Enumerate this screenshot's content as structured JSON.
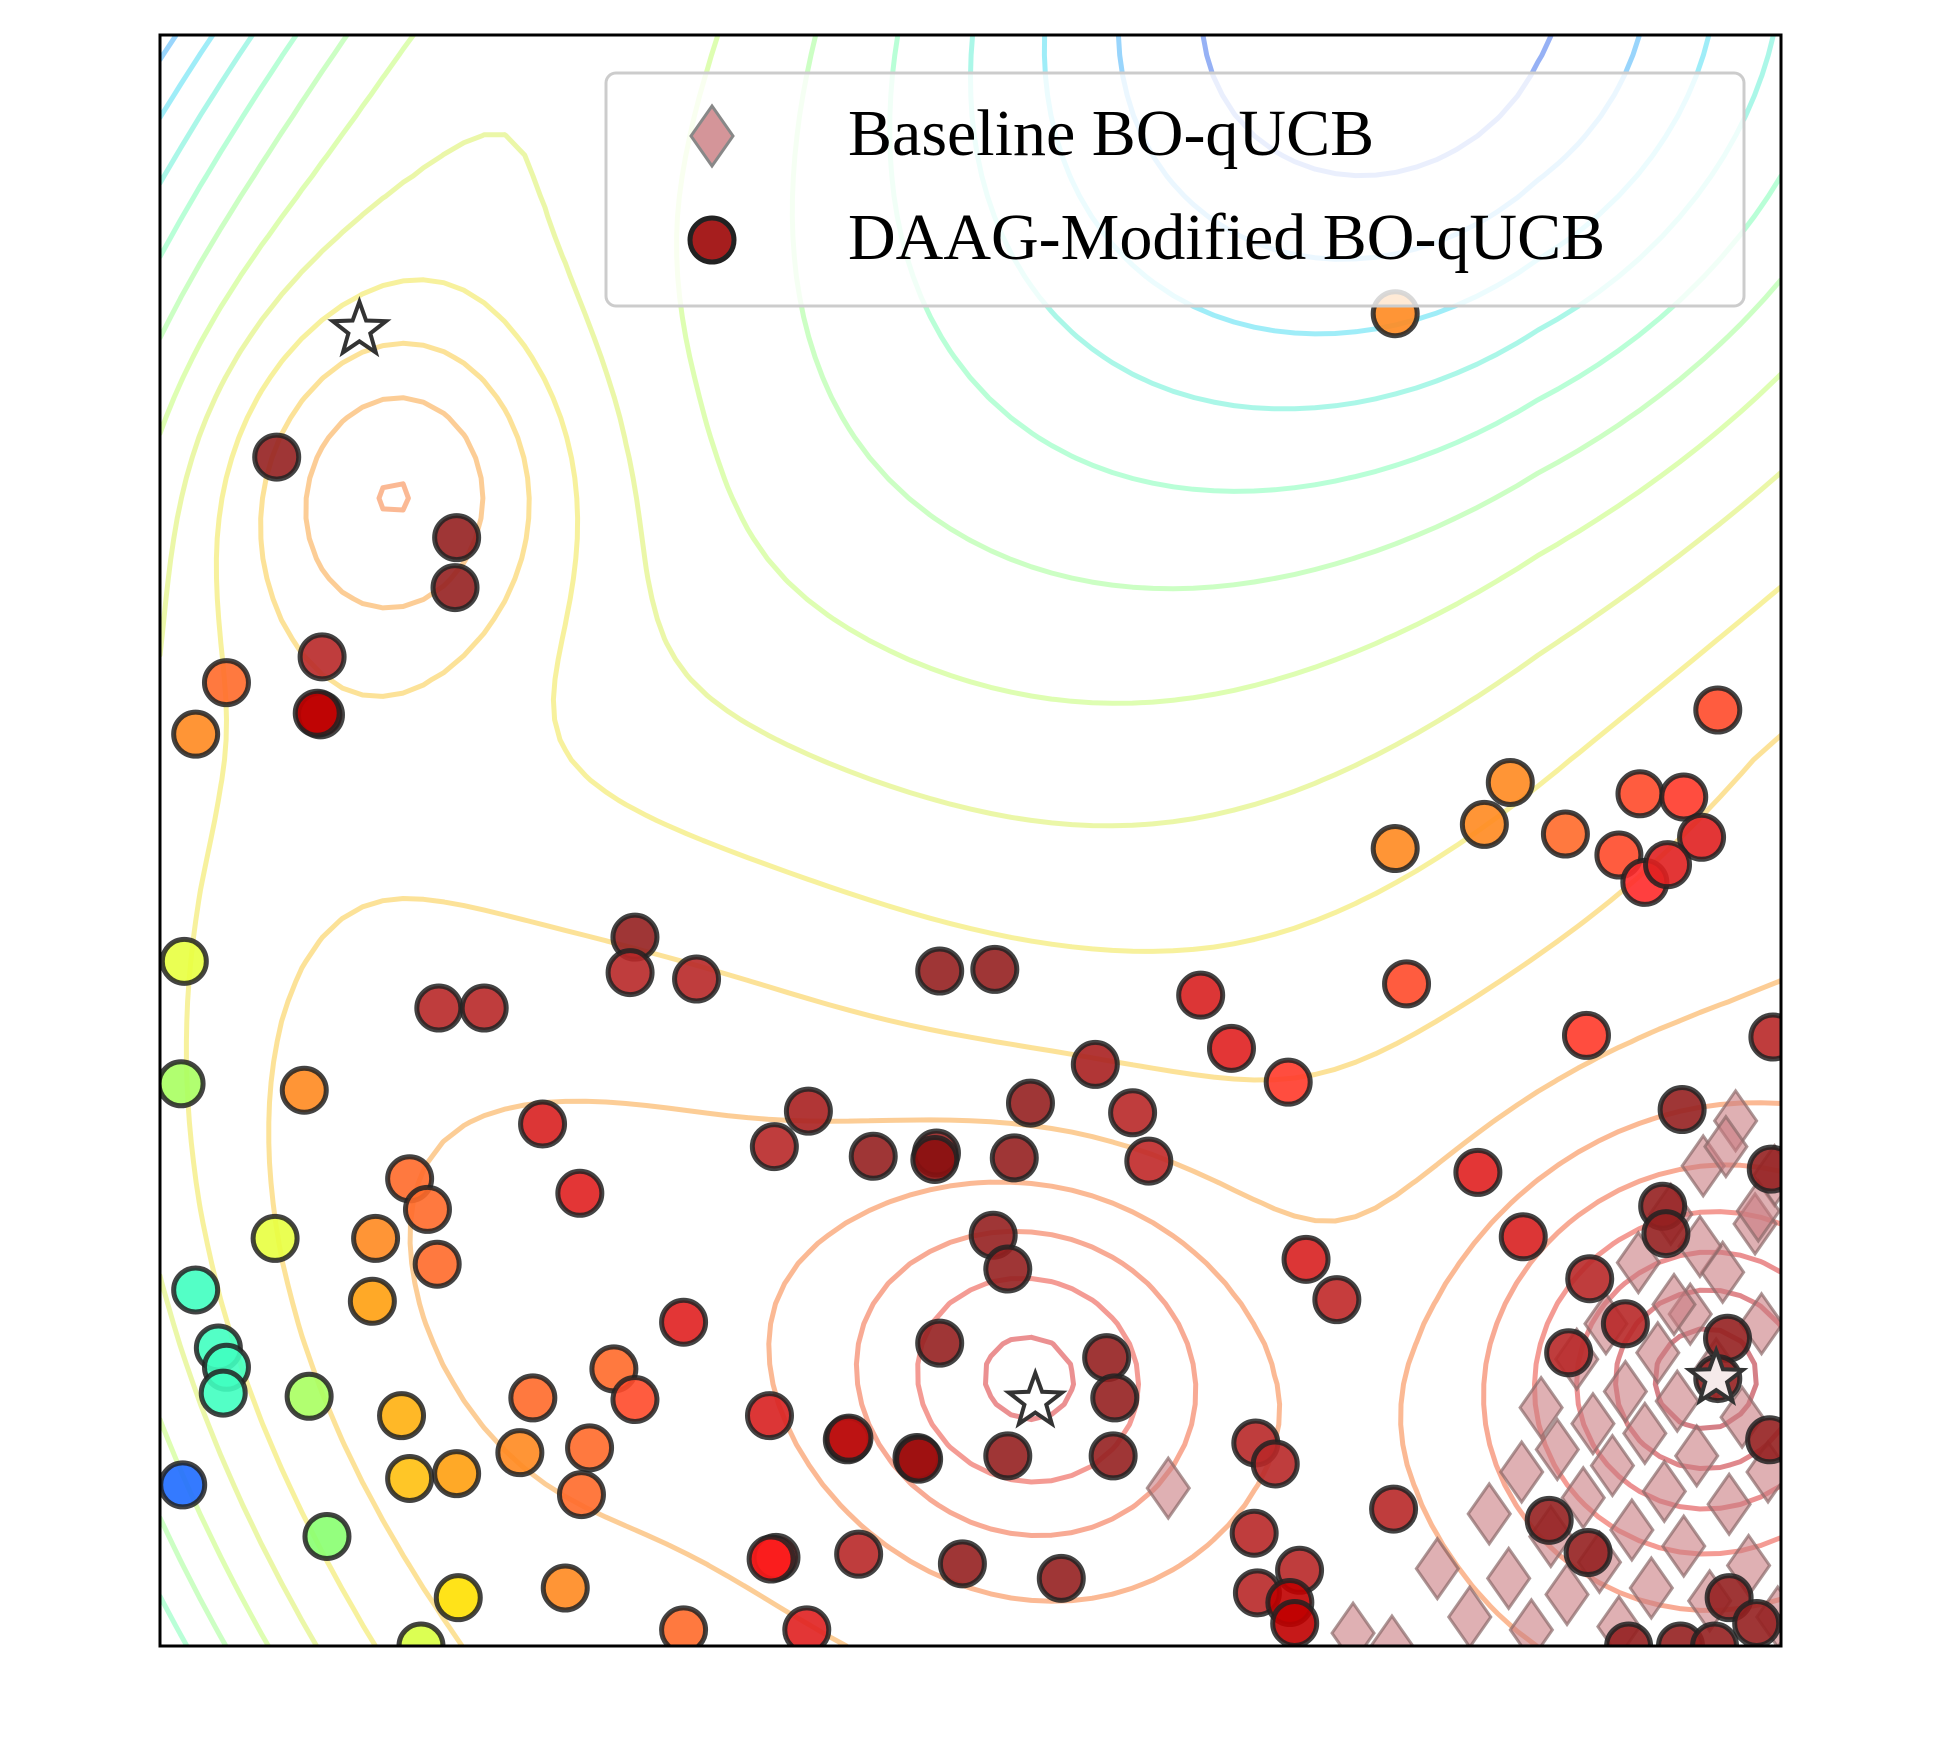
{
  "chart_data": {
    "type": "scatter",
    "title": "",
    "xlabel": "",
    "ylabel": "",
    "xlim": [
      0,
      1
    ],
    "ylim": [
      0,
      1
    ],
    "grid": false,
    "ticks_visible": false,
    "legend": {
      "placement": "top-right",
      "entries": [
        "Baseline BO-qUCB",
        "DAAG-Modified BO-qUCB"
      ]
    },
    "colors": {
      "baseline_marker": "#c97b80",
      "modified_edge": "#222222",
      "star_edge": "#333333",
      "axes": "#000000"
    },
    "background": {
      "type": "contour",
      "colormap": "jet-like (low = red near minima, high = blue)",
      "contour_levels": 18
    },
    "optima_stars": [
      {
        "x": 0.123,
        "y": 0.817
      },
      {
        "x": 0.54,
        "y": 0.152
      },
      {
        "x": 0.96,
        "y": 0.166
      }
    ],
    "series": [
      {
        "name": "Baseline BO-qUCB",
        "marker": "diamond",
        "points": [
          [
            0.622,
            0.098
          ],
          [
            0.736,
            0.008
          ],
          [
            0.76,
            0.0
          ],
          [
            0.788,
            0.048
          ],
          [
            0.808,
            0.018
          ],
          [
            0.82,
            0.082
          ],
          [
            0.832,
            0.042
          ],
          [
            0.84,
            0.108
          ],
          [
            0.846,
            0.01
          ],
          [
            0.852,
            0.148
          ],
          [
            0.858,
            0.068
          ],
          [
            0.862,
            0.122
          ],
          [
            0.868,
            0.032
          ],
          [
            0.874,
            0.178
          ],
          [
            0.878,
            0.092
          ],
          [
            0.884,
            0.138
          ],
          [
            0.888,
            0.052
          ],
          [
            0.892,
            0.2
          ],
          [
            0.896,
            0.112
          ],
          [
            0.9,
            0.012
          ],
          [
            0.904,
            0.158
          ],
          [
            0.908,
            0.072
          ],
          [
            0.912,
            0.238
          ],
          [
            0.916,
            0.132
          ],
          [
            0.92,
            0.036
          ],
          [
            0.924,
            0.182
          ],
          [
            0.928,
            0.096
          ],
          [
            0.932,
            0.268
          ],
          [
            0.936,
            0.152
          ],
          [
            0.94,
            0.062
          ],
          [
            0.944,
            0.206
          ],
          [
            0.948,
            0.118
          ],
          [
            0.952,
            0.298
          ],
          [
            0.956,
            0.028
          ],
          [
            0.96,
            0.172
          ],
          [
            0.964,
            0.232
          ],
          [
            0.968,
            0.088
          ],
          [
            0.972,
            0.326
          ],
          [
            0.976,
            0.142
          ],
          [
            0.98,
            0.05
          ],
          [
            0.984,
            0.262
          ],
          [
            0.988,
            0.2
          ],
          [
            0.992,
            0.108
          ],
          [
            0.996,
            0.292
          ],
          [
            0.998,
            0.018
          ],
          [
            0.966,
            0.31
          ],
          [
            0.986,
            0.27
          ],
          [
            0.95,
            0.248
          ],
          [
            0.934,
            0.212
          ]
        ]
      },
      {
        "name": "DAAG-Modified BO-qUCB",
        "marker": "circle",
        "points": [
          {
            "x": 0.072,
            "y": 0.738,
            "c": "#952020"
          },
          {
            "x": 0.183,
            "y": 0.688,
            "c": "#952020"
          },
          {
            "x": 0.182,
            "y": 0.657,
            "c": "#952020"
          },
          {
            "x": 0.1,
            "y": 0.614,
            "c": "#b82828"
          },
          {
            "x": 0.041,
            "y": 0.598,
            "c": "#ff6a2a"
          },
          {
            "x": 0.022,
            "y": 0.566,
            "c": "#ff8a20"
          },
          {
            "x": 0.099,
            "y": 0.578,
            "c": "#b01515"
          },
          {
            "x": 0.097,
            "y": 0.579,
            "c": "#c00000"
          },
          {
            "x": 0.015,
            "y": 0.425,
            "c": "#e8ff40"
          },
          {
            "x": 0.013,
            "y": 0.349,
            "c": "#a8ff60"
          },
          {
            "x": 0.089,
            "y": 0.345,
            "c": "#ff8a20"
          },
          {
            "x": 0.154,
            "y": 0.29,
            "c": "#ff6a2a"
          },
          {
            "x": 0.165,
            "y": 0.271,
            "c": "#ff6a2a"
          },
          {
            "x": 0.071,
            "y": 0.253,
            "c": "#e8ff40"
          },
          {
            "x": 0.133,
            "y": 0.253,
            "c": "#ff8a20"
          },
          {
            "x": 0.171,
            "y": 0.237,
            "c": "#ff6a2a"
          },
          {
            "x": 0.131,
            "y": 0.214,
            "c": "#ffa010"
          },
          {
            "x": 0.022,
            "y": 0.221,
            "c": "#40ffc0"
          },
          {
            "x": 0.036,
            "y": 0.185,
            "c": "#40ffc0"
          },
          {
            "x": 0.041,
            "y": 0.173,
            "c": "#40ffc0"
          },
          {
            "x": 0.039,
            "y": 0.157,
            "c": "#40ffc0"
          },
          {
            "x": 0.092,
            "y": 0.155,
            "c": "#a8ff60"
          },
          {
            "x": 0.014,
            "y": 0.1,
            "c": "#1e6cff"
          },
          {
            "x": 0.103,
            "y": 0.068,
            "c": "#88ff70"
          },
          {
            "x": 0.149,
            "y": 0.143,
            "c": "#ffb010"
          },
          {
            "x": 0.154,
            "y": 0.104,
            "c": "#ffc010"
          },
          {
            "x": 0.183,
            "y": 0.107,
            "c": "#ffa010"
          },
          {
            "x": 0.222,
            "y": 0.12,
            "c": "#ff8a20"
          },
          {
            "x": 0.184,
            "y": 0.03,
            "c": "#ffe000"
          },
          {
            "x": 0.161,
            "y": 0.0,
            "c": "#d8ff40"
          },
          {
            "x": 0.23,
            "y": 0.154,
            "c": "#ff6a2a"
          },
          {
            "x": 0.265,
            "y": 0.123,
            "c": "#ff6a2a"
          },
          {
            "x": 0.26,
            "y": 0.094,
            "c": "#ff6a2a"
          },
          {
            "x": 0.25,
            "y": 0.036,
            "c": "#ff8a20"
          },
          {
            "x": 0.28,
            "y": 0.172,
            "c": "#ff6a2a"
          },
          {
            "x": 0.293,
            "y": 0.153,
            "c": "#ff4a2a"
          },
          {
            "x": 0.323,
            "y": 0.201,
            "c": "#e02020"
          },
          {
            "x": 0.323,
            "y": 0.01,
            "c": "#ff6a2a"
          },
          {
            "x": 0.236,
            "y": 0.324,
            "c": "#d82020"
          },
          {
            "x": 0.259,
            "y": 0.281,
            "c": "#e02020"
          },
          {
            "x": 0.172,
            "y": 0.396,
            "c": "#b82828"
          },
          {
            "x": 0.2,
            "y": 0.396,
            "c": "#b82828"
          },
          {
            "x": 0.293,
            "y": 0.44,
            "c": "#952020"
          },
          {
            "x": 0.29,
            "y": 0.418,
            "c": "#b82828"
          },
          {
            "x": 0.331,
            "y": 0.414,
            "c": "#b82828"
          },
          {
            "x": 0.379,
            "y": 0.31,
            "c": "#b82828"
          },
          {
            "x": 0.4,
            "y": 0.332,
            "c": "#a82020"
          },
          {
            "x": 0.44,
            "y": 0.304,
            "c": "#952020"
          },
          {
            "x": 0.479,
            "y": 0.306,
            "c": "#952020"
          },
          {
            "x": 0.478,
            "y": 0.302,
            "c": "#8b1010"
          },
          {
            "x": 0.527,
            "y": 0.303,
            "c": "#952020"
          },
          {
            "x": 0.514,
            "y": 0.255,
            "c": "#952020"
          },
          {
            "x": 0.523,
            "y": 0.234,
            "c": "#952020"
          },
          {
            "x": 0.481,
            "y": 0.419,
            "c": "#952020"
          },
          {
            "x": 0.515,
            "y": 0.42,
            "c": "#952020"
          },
          {
            "x": 0.537,
            "y": 0.337,
            "c": "#952020"
          },
          {
            "x": 0.577,
            "y": 0.361,
            "c": "#a82020"
          },
          {
            "x": 0.6,
            "y": 0.331,
            "c": "#b82828"
          },
          {
            "x": 0.61,
            "y": 0.301,
            "c": "#c02828"
          },
          {
            "x": 0.481,
            "y": 0.188,
            "c": "#952020"
          },
          {
            "x": 0.376,
            "y": 0.143,
            "c": "#d82020"
          },
          {
            "x": 0.424,
            "y": 0.128,
            "c": "#952020"
          },
          {
            "x": 0.425,
            "y": 0.129,
            "c": "#c01010"
          },
          {
            "x": 0.467,
            "y": 0.117,
            "c": "#8b1010"
          },
          {
            "x": 0.468,
            "y": 0.116,
            "c": "#a01010"
          },
          {
            "x": 0.523,
            "y": 0.118,
            "c": "#952020"
          },
          {
            "x": 0.584,
            "y": 0.179,
            "c": "#952020"
          },
          {
            "x": 0.589,
            "y": 0.154,
            "c": "#952020"
          },
          {
            "x": 0.588,
            "y": 0.118,
            "c": "#952020"
          },
          {
            "x": 0.38,
            "y": 0.055,
            "c": "#c02828"
          },
          {
            "x": 0.377,
            "y": 0.054,
            "c": "#ff1a1a"
          },
          {
            "x": 0.431,
            "y": 0.057,
            "c": "#b82828"
          },
          {
            "x": 0.495,
            "y": 0.051,
            "c": "#952020"
          },
          {
            "x": 0.556,
            "y": 0.042,
            "c": "#952020"
          },
          {
            "x": 0.399,
            "y": 0.01,
            "c": "#e02020"
          },
          {
            "x": 0.642,
            "y": 0.404,
            "c": "#d82020"
          },
          {
            "x": 0.661,
            "y": 0.371,
            "c": "#e02020"
          },
          {
            "x": 0.696,
            "y": 0.35,
            "c": "#ff3a2a"
          },
          {
            "x": 0.707,
            "y": 0.24,
            "c": "#d82020"
          },
          {
            "x": 0.726,
            "y": 0.215,
            "c": "#c02828"
          },
          {
            "x": 0.676,
            "y": 0.126,
            "c": "#b82828"
          },
          {
            "x": 0.688,
            "y": 0.113,
            "c": "#b82828"
          },
          {
            "x": 0.675,
            "y": 0.07,
            "c": "#b82828"
          },
          {
            "x": 0.703,
            "y": 0.047,
            "c": "#b82828"
          },
          {
            "x": 0.677,
            "y": 0.033,
            "c": "#b82828"
          },
          {
            "x": 0.697,
            "y": 0.027,
            "c": "#c00000"
          },
          {
            "x": 0.7,
            "y": 0.014,
            "c": "#c00000"
          },
          {
            "x": 0.761,
            "y": 0.085,
            "c": "#b82828"
          },
          {
            "x": 0.762,
            "y": 0.827,
            "c": "#ff8a20"
          },
          {
            "x": 0.762,
            "y": 0.495,
            "c": "#ff8a20"
          },
          {
            "x": 0.769,
            "y": 0.411,
            "c": "#ff4a2a"
          },
          {
            "x": 0.817,
            "y": 0.51,
            "c": "#ff8a20"
          },
          {
            "x": 0.833,
            "y": 0.536,
            "c": "#ff8a20"
          },
          {
            "x": 0.813,
            "y": 0.294,
            "c": "#e02020"
          },
          {
            "x": 0.867,
            "y": 0.504,
            "c": "#ff6a2a"
          },
          {
            "x": 0.88,
            "y": 0.379,
            "c": "#ff3a2a"
          },
          {
            "x": 0.9,
            "y": 0.491,
            "c": "#ff4a2a"
          },
          {
            "x": 0.913,
            "y": 0.529,
            "c": "#ff4a2a"
          },
          {
            "x": 0.916,
            "y": 0.474,
            "c": "#ff2a2a"
          },
          {
            "x": 0.961,
            "y": 0.581,
            "c": "#ff4a2a"
          },
          {
            "x": 0.94,
            "y": 0.527,
            "c": "#ff3a2a"
          },
          {
            "x": 0.951,
            "y": 0.502,
            "c": "#e02020"
          },
          {
            "x": 0.93,
            "y": 0.485,
            "c": "#e02020"
          },
          {
            "x": 0.995,
            "y": 0.378,
            "c": "#b82828"
          },
          {
            "x": 0.841,
            "y": 0.254,
            "c": "#d82020"
          },
          {
            "x": 0.882,
            "y": 0.228,
            "c": "#b82828"
          },
          {
            "x": 0.904,
            "y": 0.2,
            "c": "#b82828"
          },
          {
            "x": 0.869,
            "y": 0.182,
            "c": "#b82828"
          },
          {
            "x": 0.939,
            "y": 0.333,
            "c": "#952020"
          },
          {
            "x": 0.927,
            "y": 0.273,
            "c": "#952020"
          },
          {
            "x": 0.929,
            "y": 0.256,
            "c": "#952020"
          },
          {
            "x": 0.994,
            "y": 0.296,
            "c": "#952020"
          },
          {
            "x": 0.967,
            "y": 0.191,
            "c": "#952020"
          },
          {
            "x": 0.961,
            "y": 0.166,
            "c": "#952020"
          },
          {
            "x": 0.993,
            "y": 0.128,
            "c": "#952020"
          },
          {
            "x": 0.857,
            "y": 0.078,
            "c": "#952020"
          },
          {
            "x": 0.881,
            "y": 0.058,
            "c": "#952020"
          },
          {
            "x": 0.968,
            "y": 0.03,
            "c": "#952020"
          },
          {
            "x": 0.985,
            "y": 0.014,
            "c": "#952020"
          },
          {
            "x": 0.906,
            "y": 0.0,
            "c": "#952020"
          },
          {
            "x": 0.938,
            "y": 0.0,
            "c": "#952020"
          },
          {
            "x": 0.959,
            "y": 0.0,
            "c": "#952020"
          }
        ]
      }
    ]
  }
}
